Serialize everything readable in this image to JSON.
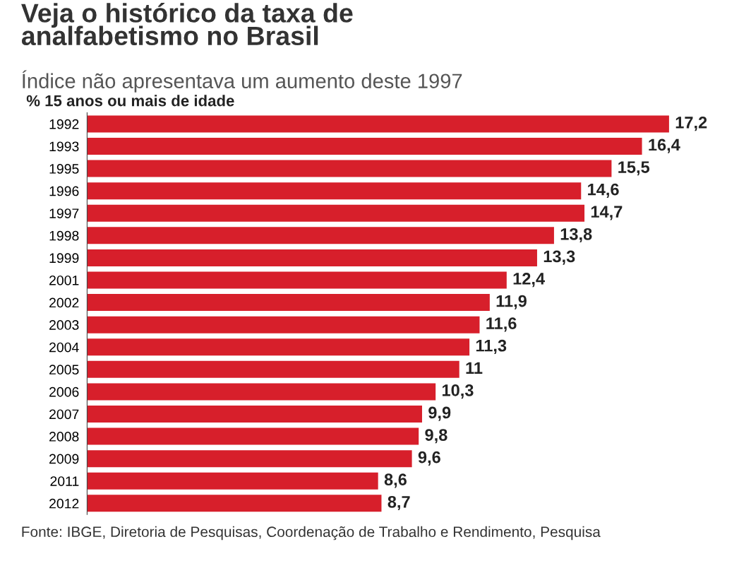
{
  "chart_data": {
    "type": "bar",
    "orientation": "horizontal",
    "title": "Veja o histórico da taxa de\nanalfabetismo no Brasil",
    "subtitle": "Índice não apresentava um aumento deste 1997",
    "annotations": [
      "% 15 anos ou mais de idade",
      "Fonte: IBGE, Diretoria de Pesquisas, Coordenação de Trabalho e Rendimento, Pesquisa"
    ],
    "categories": [
      "1992",
      "1993",
      "1995",
      "1996",
      "1997",
      "1998",
      "1999",
      "2001",
      "2002",
      "2003",
      "2004",
      "2005",
      "2006",
      "2007",
      "2008",
      "2009",
      "2011",
      "2012"
    ],
    "values": [
      17.2,
      16.4,
      15.5,
      14.6,
      14.7,
      13.8,
      13.3,
      12.4,
      11.9,
      11.6,
      11.3,
      11,
      10.3,
      9.9,
      9.8,
      9.6,
      8.6,
      8.7
    ],
    "value_labels": [
      "17,2",
      "16,4",
      "15,5",
      "14,6",
      "14,7",
      "13,8",
      "13,3",
      "12,4",
      "11,9",
      "11,6",
      "11,3",
      "11",
      "10,3",
      "9,9",
      "9,8",
      "9,6",
      "8,6",
      "8,7"
    ],
    "color": "#d71f2b",
    "grid": false,
    "legend": false
  }
}
